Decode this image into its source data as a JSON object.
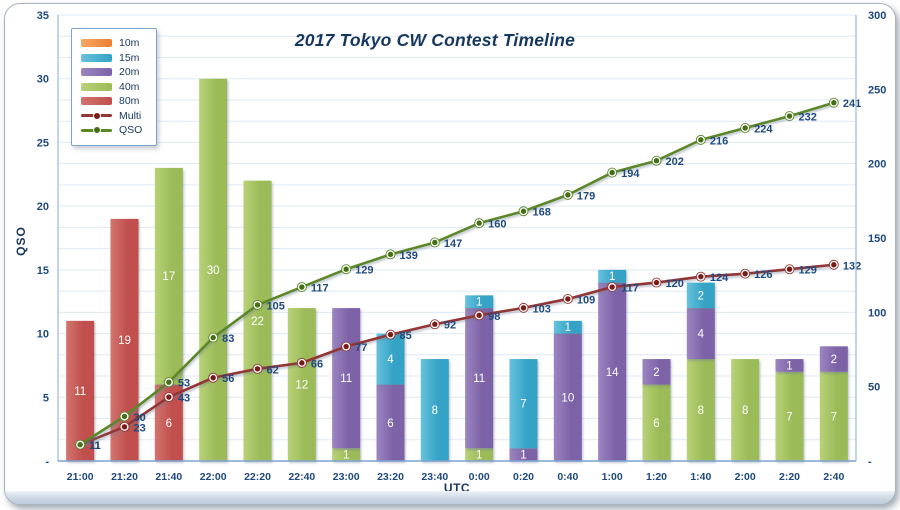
{
  "title": "2017 Tokyo CW Contest Timeline",
  "colors": {
    "label_text": "#1F497D",
    "title_text": "#17375E",
    "gridline": "#dfe9f5",
    "axis_line": "#7FA3CF",
    "plot_border": "#A3BCDD",
    "bar_label": "#ffffff"
  },
  "chart_data": {
    "type": "combo-stacked-bar-line",
    "categories": [
      "21:00",
      "21:20",
      "21:40",
      "22:00",
      "22:20",
      "22:40",
      "23:00",
      "23:20",
      "23:40",
      "0:00",
      "0:20",
      "0:40",
      "1:00",
      "1:20",
      "1:40",
      "2:00",
      "2:20",
      "2:40"
    ],
    "x_axis": {
      "title": "UTC"
    },
    "left_axis": {
      "title": "QSO",
      "min": 0,
      "max": 35,
      "tick_step": 5,
      "tick_labels": [
        "-",
        "5",
        "10",
        "15",
        "20",
        "25",
        "30",
        "35"
      ]
    },
    "right_axis": {
      "min": 0,
      "max": 300,
      "tick_step": 50,
      "tick_labels": [
        "-",
        "50",
        "100",
        "150",
        "200",
        "250",
        "300"
      ]
    },
    "grid_intervals": 21,
    "stack_order_bottom_to_top": [
      "80m",
      "40m",
      "20m",
      "15m",
      "10m"
    ],
    "bar_series": [
      {
        "name": "10m",
        "color": "#ED7D31",
        "color_light": "#F6A864",
        "values": [
          0,
          0,
          0,
          0,
          0,
          0,
          0,
          0,
          0,
          0,
          0,
          0,
          0,
          0,
          0,
          0,
          0,
          0
        ]
      },
      {
        "name": "15m",
        "color": "#35A3C6",
        "color_light": "#67C2DC",
        "values": [
          0,
          0,
          0,
          0,
          0,
          0,
          0,
          4,
          8,
          1,
          7,
          1,
          1,
          0,
          2,
          0,
          0,
          0
        ]
      },
      {
        "name": "20m",
        "color": "#7D62A8",
        "color_light": "#9C85C0",
        "values": [
          0,
          0,
          0,
          0,
          0,
          0,
          11,
          6,
          0,
          11,
          1,
          10,
          14,
          2,
          4,
          0,
          1,
          2
        ]
      },
      {
        "name": "40m",
        "color": "#9BBB59",
        "color_light": "#B8D277",
        "values": [
          0,
          0,
          17,
          30,
          22,
          12,
          1,
          0,
          0,
          1,
          0,
          0,
          0,
          6,
          8,
          8,
          7,
          7
        ]
      },
      {
        "name": "80m",
        "color": "#C0504D",
        "color_light": "#D3746F",
        "values": [
          11,
          19,
          6,
          0,
          0,
          0,
          0,
          0,
          0,
          0,
          0,
          0,
          0,
          0,
          0,
          0,
          0,
          0
        ]
      }
    ],
    "line_series": [
      {
        "name": "Multi",
        "color": "#943634",
        "marker_color": "#7A1B17",
        "values": [
          11,
          23,
          43,
          56,
          62,
          66,
          77,
          85,
          92,
          98,
          103,
          109,
          117,
          120,
          124,
          126,
          129,
          132
        ]
      },
      {
        "name": "QSO",
        "color": "#5C8727",
        "marker_color": "#456F15",
        "values": [
          11,
          30,
          53,
          83,
          105,
          117,
          129,
          139,
          147,
          160,
          168,
          179,
          194,
          202,
          216,
          224,
          232,
          241
        ]
      }
    ]
  },
  "legend": {
    "items": [
      {
        "label": "10m",
        "type": "bar",
        "series": "10m"
      },
      {
        "label": "15m",
        "type": "bar",
        "series": "15m"
      },
      {
        "label": "20m",
        "type": "bar",
        "series": "20m"
      },
      {
        "label": "40m",
        "type": "bar",
        "series": "40m"
      },
      {
        "label": "80m",
        "type": "bar",
        "series": "80m"
      },
      {
        "label": "Multi",
        "type": "line",
        "series": "Multi"
      },
      {
        "label": "QSO",
        "type": "line",
        "series": "QSO"
      }
    ]
  }
}
